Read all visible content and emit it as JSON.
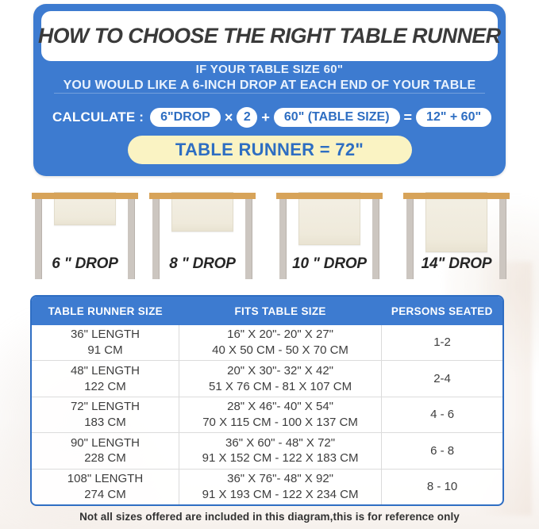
{
  "banner": {
    "title": "HOW TO CHOOSE THE RIGHT TABLE RUNNER",
    "subtitle_line1": "IF YOUR TABLE SIZE 60\"",
    "subtitle_line2": "YOU WOULD LIKE A 6-INCH DROP AT EACH END OF YOUR TABLE"
  },
  "calculate": {
    "label": "CALCULATE :",
    "drop_pill": "6\"DROP",
    "times_sign": "×",
    "multiplier": "2",
    "plus_sign": "+",
    "table_size_pill": "60\"  (TABLE SIZE)",
    "equals_sign": "=",
    "sum_pill": "12\" + 60\"",
    "result": "TABLE RUNNER = 72\""
  },
  "diagram": {
    "drops": [
      {
        "label": "6 \" DROP",
        "drop_inches": 6
      },
      {
        "label": "8 \" DROP",
        "drop_inches": 8
      },
      {
        "label": "10 \" DROP",
        "drop_inches": 10
      },
      {
        "label": "14\" DROP",
        "drop_inches": 14
      }
    ]
  },
  "size_table": {
    "columns": [
      "TABLE RUNNER SIZE",
      "FITS TABLE SIZE",
      "PERSONS SEATED"
    ],
    "rows": [
      {
        "runner_in": "36\" LENGTH",
        "runner_cm": "91 CM",
        "fits_in": "16\" X 20\"- 20\" X 27\"",
        "fits_cm": "40 X 50 CM - 50 X 70 CM",
        "persons": "1-2"
      },
      {
        "runner_in": "48\" LENGTH",
        "runner_cm": "122 CM",
        "fits_in": "20\" X 30\"- 32\" X 42\"",
        "fits_cm": "51 X 76 CM - 81 X 107 CM",
        "persons": "2-4"
      },
      {
        "runner_in": "72\" LENGTH",
        "runner_cm": "183 CM",
        "fits_in": "28\" X 46\"- 40\" X 54\"",
        "fits_cm": "70 X 115 CM - 100 X 137 CM",
        "persons": "4 - 6"
      },
      {
        "runner_in": "90\" LENGTH",
        "runner_cm": "228 CM",
        "fits_in": "36\" X 60\" - 48\" X 72\"",
        "fits_cm": "91 X 152 CM - 122 X 183 CM",
        "persons": "6 - 8"
      },
      {
        "runner_in": "108\" LENGTH",
        "runner_cm": "274 CM",
        "fits_in": "36\" X 76\"- 48\" X 92\"",
        "fits_cm": "91 X 193 CM - 122 X 234 CM",
        "persons": "8 - 10"
      }
    ]
  },
  "footer": {
    "note": "Not all sizes offered are included in this diagram,this is for reference only"
  },
  "colors": {
    "panel_blue": "#3d7bd0",
    "accent_blue": "#2e6ec2",
    "result_yellow": "#faf3c3",
    "tabletop_tan": "#d7a359",
    "leg_gray": "#ccc6c0",
    "runner_cream": "#f2eee1"
  }
}
